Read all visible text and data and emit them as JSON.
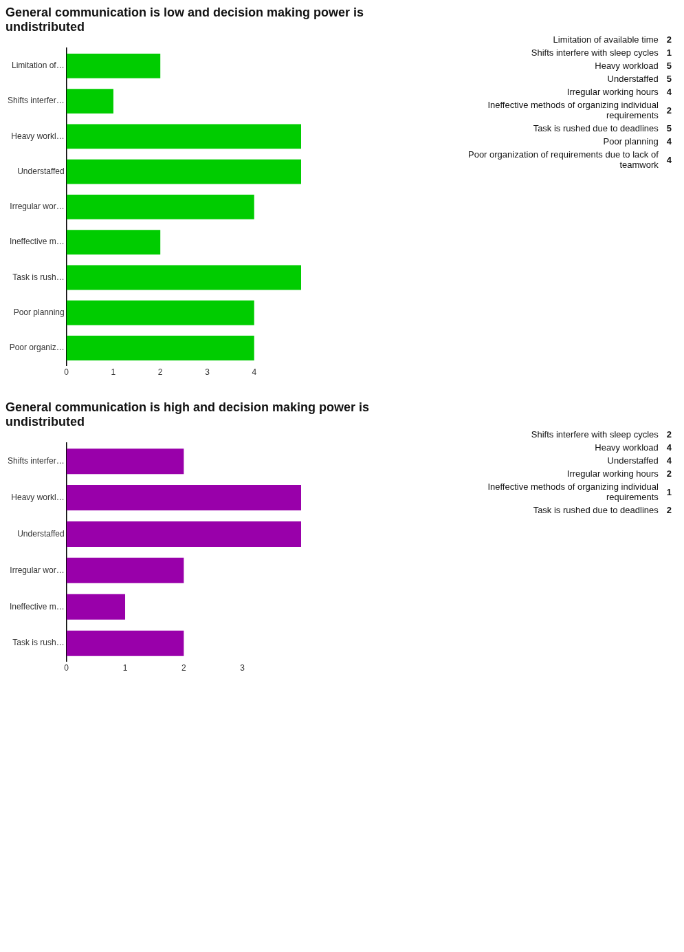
{
  "chart_data": [
    {
      "type": "bar",
      "orientation": "horizontal",
      "title": "General communication is low and decision making power is undistributed",
      "categories": [
        "Limitation of…",
        "Shifts interfer…",
        "Heavy workl…",
        "Understaffed",
        "Irregular wor…",
        "Ineffective m…",
        "Task is rush…",
        "Poor planning",
        "Poor organiz…"
      ],
      "values": [
        2,
        1,
        5,
        5,
        4,
        2,
        5,
        4,
        4
      ],
      "color": "#00cc00",
      "xlim": [
        0,
        5
      ],
      "xticks": [
        0,
        1,
        2,
        3,
        4
      ],
      "grid": false,
      "legend": false
    },
    {
      "type": "other",
      "categories": [
        "Limitation of available time",
        "Shifts interfere with sleep cycles",
        "Heavy workload",
        "Understaffed",
        "Irregular working hours",
        "Ineffective methods of organizing individual requirements",
        "Task is rushed due to deadlines",
        "Poor planning",
        "Poor organization of requirements due to lack of teamwork"
      ],
      "values": [
        2,
        1,
        5,
        5,
        4,
        2,
        5,
        4,
        4
      ],
      "data_labels": true
    },
    {
      "type": "bar",
      "orientation": "horizontal",
      "title": "General communication is high and decision making power is undistributed",
      "categories": [
        "Shifts interfer…",
        "Heavy workl…",
        "Understaffed",
        "Irregular wor…",
        "Ineffective m…",
        "Task is rush…"
      ],
      "values": [
        2,
        4,
        4,
        2,
        1,
        2
      ],
      "color": "#9900aa",
      "xlim": [
        0,
        4
      ],
      "xticks": [
        0,
        1,
        2,
        3
      ],
      "grid": false,
      "legend": false
    },
    {
      "type": "other",
      "categories": [
        "Shifts interfere with sleep cycles",
        "Heavy workload",
        "Understaffed",
        "Irregular working hours",
        "Ineffective methods of organizing individual requirements",
        "Task is rushed due to deadlines"
      ],
      "values": [
        2,
        4,
        4,
        2,
        1,
        2
      ],
      "data_labels": true
    }
  ]
}
